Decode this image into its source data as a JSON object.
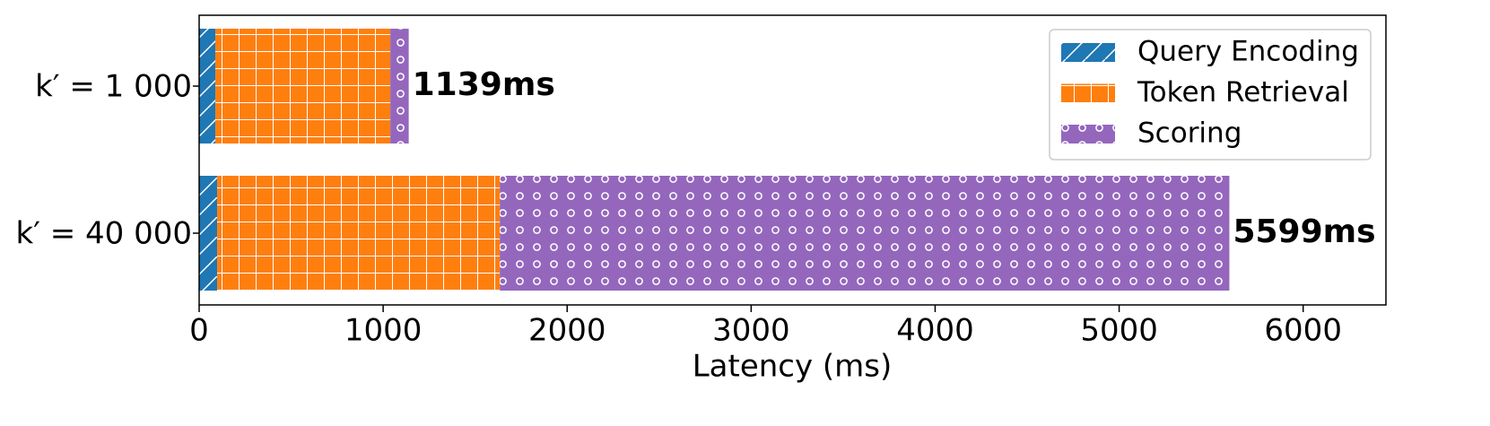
{
  "chart_data": {
    "type": "stacked-bar-horizontal",
    "categories": [
      "k′ = 1 000",
      "k′ = 40 000"
    ],
    "series": [
      {
        "name": "Query Encoding",
        "color": "#1f77b4",
        "hatch": "/",
        "values": [
          88,
          98
        ]
      },
      {
        "name": "Token Retrieval",
        "color": "#ff7f0e",
        "hatch": "+",
        "values": [
          951,
          1536
        ]
      },
      {
        "name": "Scoring",
        "color": "#9467bd",
        "hatch": "o",
        "values": [
          100,
          3965
        ]
      }
    ],
    "totals": [
      1139,
      5599
    ],
    "total_labels": [
      "1139ms",
      "5599ms"
    ],
    "x_label": "Latency (ms)",
    "xlim": [
      0,
      6450
    ],
    "xticks": [
      0,
      1000,
      2000,
      3000,
      4000,
      5000,
      6000
    ],
    "legend": "upper right"
  }
}
